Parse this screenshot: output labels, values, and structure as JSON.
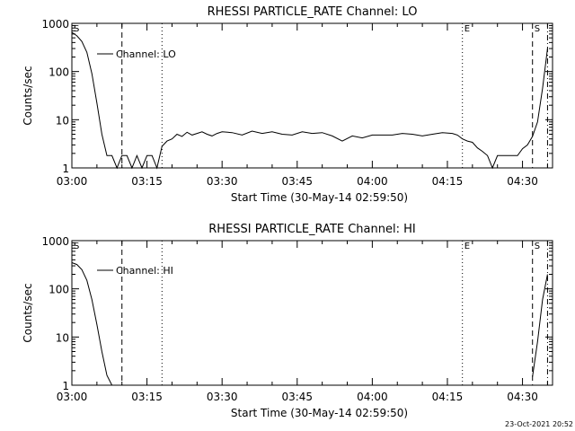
{
  "timestamp": "23-Oct-2021 20:52",
  "chart_data": [
    {
      "type": "line",
      "title": "RHESSI PARTICLE_RATE Channel: LO",
      "xlabel": "Start Time (30-May-14 02:59:50)",
      "ylabel": "Counts/sec",
      "y_scale": "log",
      "ylim": [
        1,
        1000
      ],
      "xlim": [
        "03:00",
        "04:36"
      ],
      "x_ticks": [
        "03:00",
        "03:15",
        "03:30",
        "03:45",
        "04:00",
        "04:15",
        "04:30"
      ],
      "y_ticks": [
        "1",
        "10",
        "100",
        "1000"
      ],
      "legend": {
        "label": "Channel: LO",
        "position": "top-left"
      },
      "markers": [
        {
          "label": "S",
          "time": "03:00",
          "style": "none"
        },
        {
          "label": "",
          "time": "03:10",
          "style": "dashed"
        },
        {
          "label": "",
          "time": "03:18",
          "style": "dotted"
        },
        {
          "label": "E",
          "time": "04:18",
          "style": "dotted"
        },
        {
          "label": "S",
          "time": "04:32",
          "style": "dashed"
        },
        {
          "label": "",
          "time": "04:35",
          "style": "dashdot"
        }
      ],
      "series": [
        {
          "name": "Channel: LO",
          "x": [
            "03:00",
            "03:01",
            "03:02",
            "03:03",
            "03:04",
            "03:05",
            "03:06",
            "03:07",
            "03:08",
            "03:09",
            "03:10",
            "03:11",
            "03:12",
            "03:13",
            "03:14",
            "03:15",
            "03:16",
            "03:17",
            "03:18",
            "03:19",
            "03:20",
            "03:21",
            "03:22",
            "03:23",
            "03:24",
            "03:25",
            "03:26",
            "03:27",
            "03:28",
            "03:29",
            "03:30",
            "03:32",
            "03:34",
            "03:36",
            "03:38",
            "03:40",
            "03:42",
            "03:44",
            "03:46",
            "03:48",
            "03:50",
            "03:52",
            "03:54",
            "03:56",
            "03:58",
            "04:00",
            "04:02",
            "04:04",
            "04:06",
            "04:08",
            "04:10",
            "04:12",
            "04:14",
            "04:16",
            "04:17",
            "04:18",
            "04:19",
            "04:20",
            "04:21",
            "04:22",
            "04:23",
            "04:24",
            "04:25",
            "04:26",
            "04:27",
            "04:28",
            "04:29",
            "04:30",
            "04:31",
            "04:32",
            "04:33",
            "04:34",
            "04:35"
          ],
          "y": [
            650,
            550,
            420,
            250,
            90,
            22,
            5,
            1.8,
            1.8,
            1,
            1.8,
            1.8,
            1,
            1.8,
            1,
            1.8,
            1.8,
            1,
            2.8,
            3.6,
            4,
            5,
            4.5,
            5.5,
            4.8,
            5.2,
            5.6,
            5,
            4.6,
            5.2,
            5.6,
            5.4,
            4.8,
            5.8,
            5.2,
            5.6,
            5,
            4.8,
            5.6,
            5.2,
            5.4,
            4.6,
            3.6,
            4.6,
            4.2,
            4.8,
            4.8,
            4.8,
            5.2,
            5,
            4.6,
            5,
            5.4,
            5.2,
            4.8,
            4,
            3.6,
            3.4,
            2.6,
            2.2,
            1.8,
            1,
            1.8,
            1.8,
            1.8,
            1.8,
            1.8,
            2.5,
            3,
            4.5,
            9,
            45,
            300
          ]
        }
      ]
    },
    {
      "type": "line",
      "title": "RHESSI PARTICLE_RATE Channel: HI",
      "xlabel": "Start Time (30-May-14 02:59:50)",
      "ylabel": "Counts/sec",
      "y_scale": "log",
      "ylim": [
        1,
        1000
      ],
      "xlim": [
        "03:00",
        "04:36"
      ],
      "x_ticks": [
        "03:00",
        "03:15",
        "03:30",
        "03:45",
        "04:00",
        "04:15",
        "04:30"
      ],
      "y_ticks": [
        "1",
        "10",
        "100",
        "1000"
      ],
      "legend": {
        "label": "Channel: HI",
        "position": "top-left"
      },
      "markers": [
        {
          "label": "S",
          "time": "03:00",
          "style": "none"
        },
        {
          "label": "",
          "time": "03:10",
          "style": "dashed"
        },
        {
          "label": "",
          "time": "03:18",
          "style": "dotted"
        },
        {
          "label": "E",
          "time": "04:18",
          "style": "dotted"
        },
        {
          "label": "S",
          "time": "04:32",
          "style": "dashed"
        },
        {
          "label": "",
          "time": "04:35",
          "style": "dashdot"
        }
      ],
      "series": [
        {
          "name": "Channel: HI",
          "x": [
            "03:00",
            "03:01",
            "03:02",
            "03:03",
            "03:04",
            "03:05",
            "03:06",
            "03:07",
            "03:08",
            "04:32",
            "04:33",
            "04:34",
            "04:35"
          ],
          "y": [
            350,
            320,
            250,
            150,
            60,
            18,
            5,
            1.6,
            1,
            1.5,
            8,
            60,
            200
          ]
        }
      ]
    }
  ]
}
